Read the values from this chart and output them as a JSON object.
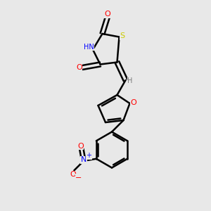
{
  "bg_color": "#e8e8e8",
  "atom_colors": {
    "C": "#000000",
    "H": "#7a7a7a",
    "N": "#0000ff",
    "O": "#ff0000",
    "S": "#cccc00"
  },
  "bond_color": "#000000",
  "bond_width": 1.8,
  "figsize": [
    3.0,
    3.0
  ],
  "dpi": 100
}
